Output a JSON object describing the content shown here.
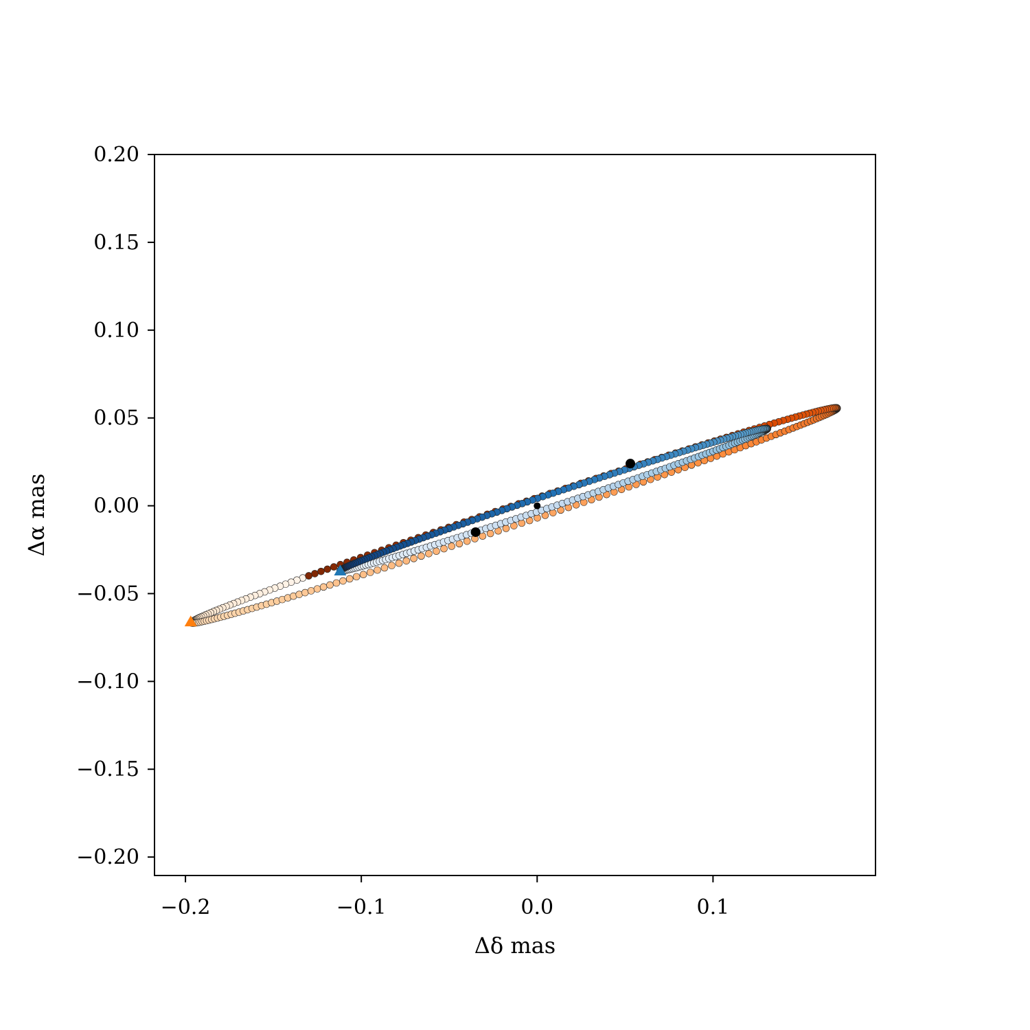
{
  "chart_data": {
    "type": "scatter",
    "xlabel": "Δδ mas",
    "ylabel": "Δα mas",
    "xlim": [
      -0.2176,
      0.1924
    ],
    "ylim": [
      -0.2105,
      0.2
    ],
    "x_ticks": [
      -0.2,
      -0.1,
      0.0,
      0.1
    ],
    "x_tick_labels": [
      "−0.2",
      "−0.1",
      "0.0",
      "0.1"
    ],
    "y_ticks": [
      0.2,
      0.15,
      0.1,
      0.05,
      0.0,
      -0.05,
      -0.1,
      -0.15,
      -0.2
    ],
    "y_tick_labels": [
      "0.20",
      "0.15",
      "0.10",
      "0.05",
      "0.00",
      "−0.05",
      "−0.10",
      "−0.15",
      "−0.20"
    ],
    "grid": false,
    "series": [
      {
        "colormap": "oranges",
        "colors": [
          "#fff5eb",
          "#fdd0a2",
          "#fd8d3c",
          "#d94801",
          "#7f2704"
        ],
        "ellipse": {
          "center": [
            -0.013,
            -0.0055
          ],
          "semi_major": 0.1935,
          "semi_minor": 0.0055,
          "angle_deg": 18.4
        },
        "start_angle_deg": 129,
        "end_angle_deg": 489,
        "start_marker": {
          "shape": "circle",
          "x": 0.053,
          "y": 0.024,
          "color": "#000000"
        },
        "end_marker": {
          "shape": "triangle",
          "x": -0.197,
          "y": -0.066,
          "color": "#ff7f0e"
        }
      },
      {
        "colormap": "blues",
        "colors": [
          "#f7fbff",
          "#c6dbef",
          "#6baed6",
          "#2171b5",
          "#08306b"
        ],
        "ellipse": {
          "center": [
            0.0095,
            0.0035
          ],
          "semi_major": 0.128,
          "semi_minor": 0.0036,
          "angle_deg": 18.4
        },
        "start_angle_deg": -180,
        "end_angle_deg": 180,
        "start_marker": {
          "shape": "circle",
          "x": -0.035,
          "y": -0.015,
          "color": "#000000"
        },
        "end_marker": {
          "shape": "triangle",
          "x": -0.112,
          "y": -0.037,
          "color": "#1f77b4"
        }
      }
    ],
    "center_marker": {
      "shape": "circle",
      "x": 0.0,
      "y": 0.0,
      "color": "#000000"
    }
  }
}
